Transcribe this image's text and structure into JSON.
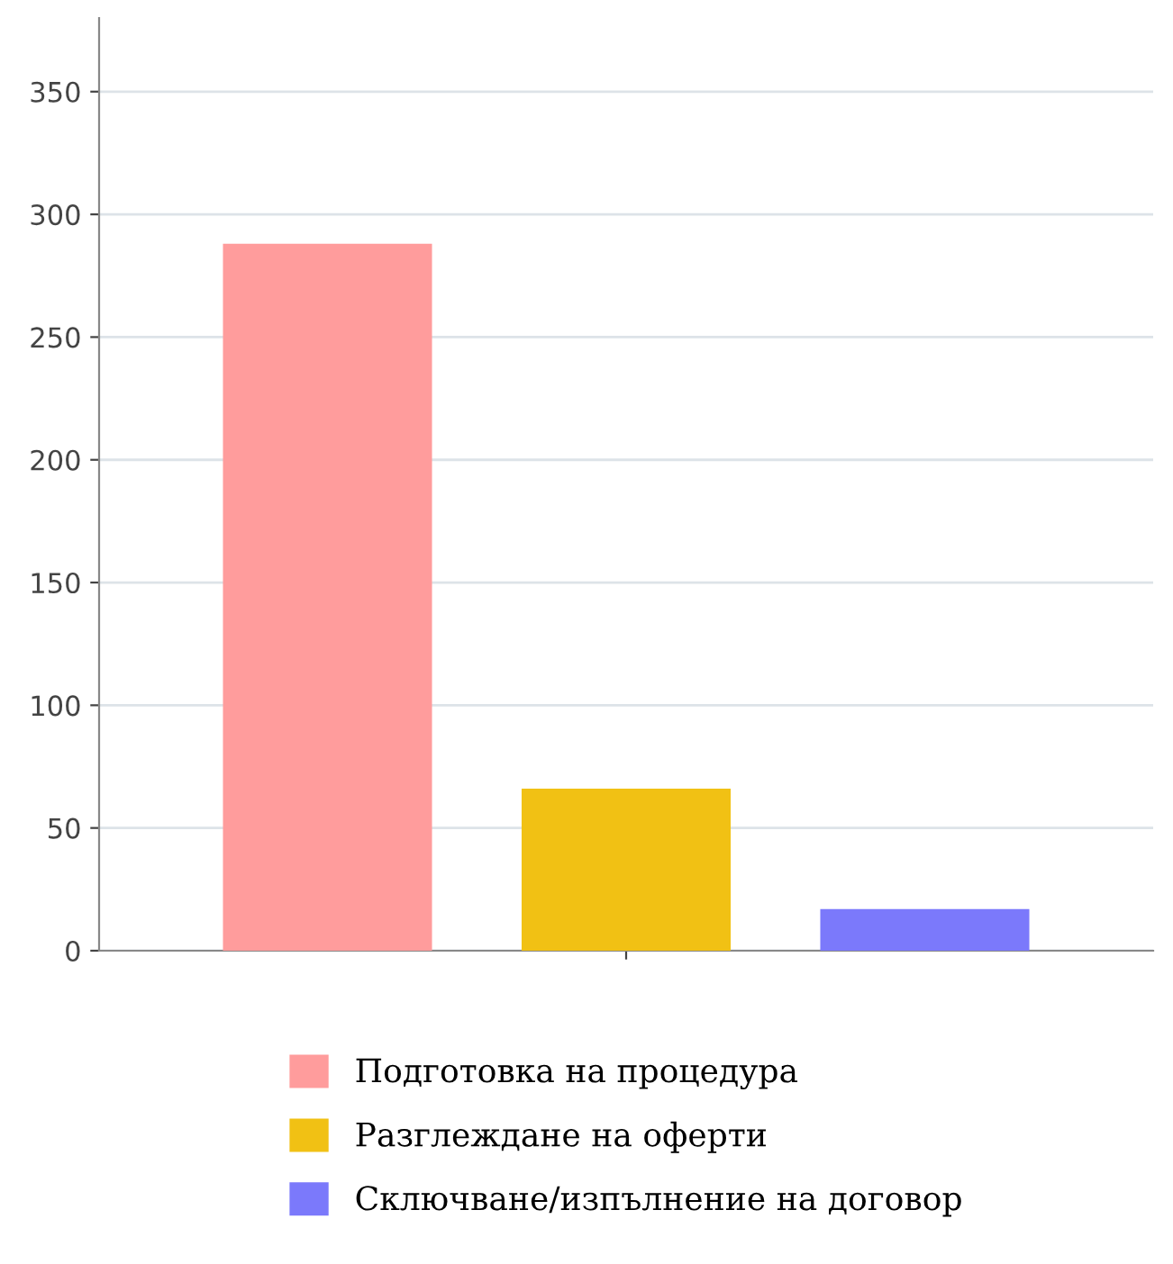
{
  "chart_data": {
    "type": "bar",
    "categories": [
      null
    ],
    "series": [
      {
        "name": "Подготовка на процедура",
        "color": "#ff9c9c",
        "values": [
          288
        ]
      },
      {
        "name": "Разглеждане на оферти",
        "color": "#f1c114",
        "values": [
          66
        ]
      },
      {
        "name": "Сключване/изпълнение на договор",
        "color": "#7b79fb",
        "values": [
          17
        ]
      }
    ],
    "ylim": [
      0,
      380
    ],
    "yticks": [
      0,
      50,
      100,
      150,
      200,
      250,
      300,
      350
    ],
    "grid": "y",
    "legend": "bottom"
  }
}
